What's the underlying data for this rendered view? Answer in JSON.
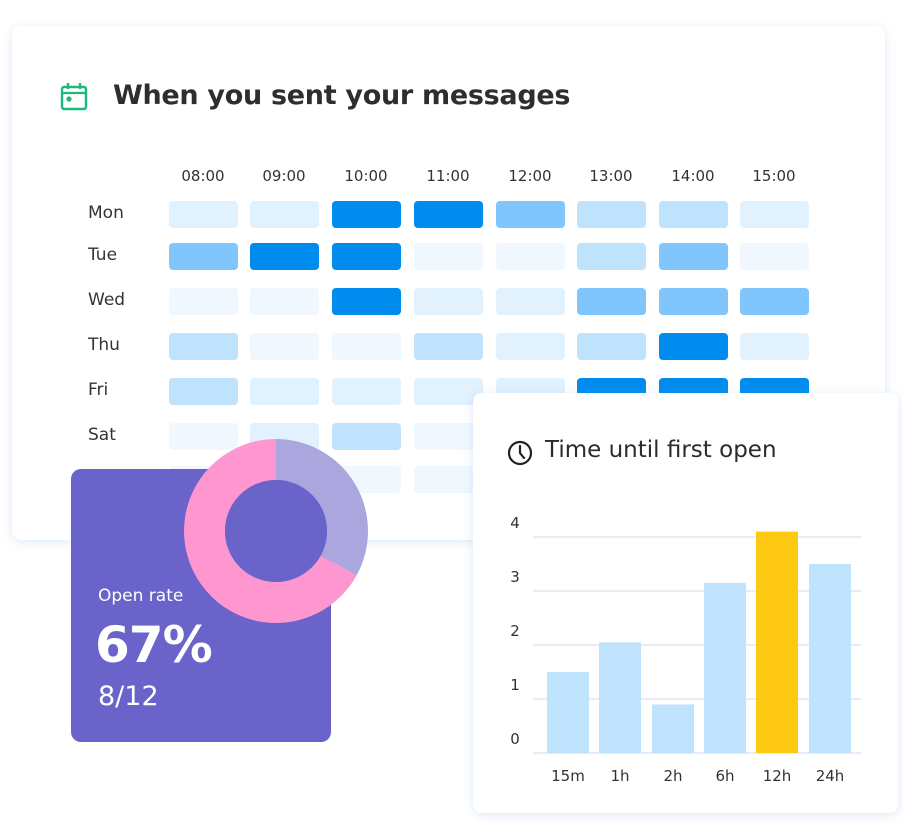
{
  "heatmap": {
    "title": "When you sent your messages",
    "icon": "calendar-icon",
    "icon_color": "#1db87a",
    "hours": [
      "08:00",
      "09:00",
      "10:00",
      "11:00",
      "12:00",
      "13:00",
      "14:00",
      "15:00"
    ],
    "days": [
      "Mon",
      "Tue",
      "Wed",
      "Thu",
      "Fri",
      "Sat",
      ""
    ],
    "levels": [
      [
        1,
        1,
        4,
        4,
        3,
        2,
        2,
        1
      ],
      [
        3,
        4,
        4,
        0,
        0,
        2,
        3,
        0
      ],
      [
        0,
        0,
        4,
        1,
        1,
        3,
        3,
        3
      ],
      [
        2,
        0,
        0,
        2,
        1,
        2,
        4,
        1
      ],
      [
        2,
        1,
        1,
        1,
        1,
        4,
        4,
        4
      ],
      [
        0,
        1,
        2,
        0,
        null,
        null,
        null,
        null
      ],
      [
        null,
        null,
        0,
        0,
        null,
        null,
        null,
        null
      ]
    ],
    "level_colors": [
      "#f0f7fe",
      "#e1f1fd",
      "#bfe3fd",
      "#80c6fc",
      "#008cee"
    ]
  },
  "open_rate": {
    "label": "Open rate",
    "percent_text": "67%",
    "fraction_text": "8/12",
    "percent": 67,
    "colors": {
      "card": "#6a63c9",
      "opened": "#fe97cf",
      "unopened": "#aba6dd"
    }
  },
  "chart_data": {
    "type": "bar",
    "title": "Time until first open",
    "icon": "clock-icon",
    "categories": [
      "15m",
      "1h",
      "2h",
      "6h",
      "12h",
      "24h"
    ],
    "values": [
      1.5,
      2.05,
      0.9,
      3.15,
      4.1,
      3.5
    ],
    "highlight_index": 4,
    "bar_color": "#c0e3fd",
    "highlight_color": "#fdc913",
    "ylim": [
      0,
      4
    ],
    "yticks": [
      0,
      1,
      2,
      3,
      4
    ],
    "xlabel": "",
    "ylabel": "",
    "grid": true
  }
}
